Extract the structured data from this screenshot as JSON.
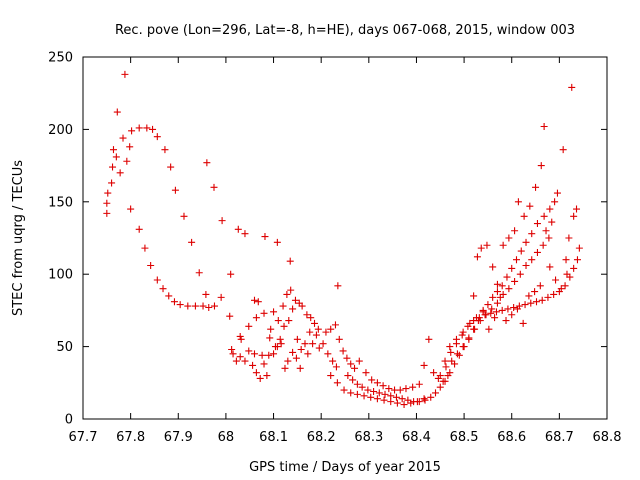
{
  "chart_data": {
    "type": "scatter",
    "title": "Rec. pove (Lon=296, Lat=-8, h=HE), days 067-068, 2015, window 003",
    "xlabel": "GPS time / Days of year 2015",
    "ylabel": "STEC from uqrg / TECUs",
    "xlim": [
      67.7,
      68.8
    ],
    "ylim": [
      0,
      250
    ],
    "x_ticks": [
      "67.7",
      "67.8",
      "67.9",
      "68",
      "68.1",
      "68.2",
      "68.3",
      "68.4",
      "68.5",
      "68.6",
      "68.7",
      "68.8"
    ],
    "y_ticks": [
      "0",
      "50",
      "100",
      "150",
      "200",
      "250"
    ],
    "grid": false,
    "marker": "+",
    "color": "#dd0000",
    "series": [
      {
        "points": [
          [
            67.75,
            142
          ],
          [
            67.75,
            149
          ],
          [
            67.752,
            156
          ],
          [
            67.76,
            163
          ],
          [
            67.762,
            174
          ],
          [
            67.764,
            186
          ],
          [
            67.77,
            181
          ],
          [
            67.772,
            212
          ],
          [
            67.778,
            170
          ],
          [
            67.784,
            194
          ],
          [
            67.788,
            238
          ],
          [
            67.792,
            178
          ],
          [
            67.798,
            188
          ],
          [
            67.802,
            199
          ],
          [
            67.818,
            201
          ],
          [
            67.834,
            201
          ],
          [
            67.846,
            200
          ],
          [
            67.856,
            195
          ],
          [
            67.872,
            186
          ],
          [
            67.884,
            174
          ],
          [
            67.894,
            158
          ],
          [
            67.912,
            140
          ],
          [
            67.928,
            122
          ],
          [
            67.96,
            177
          ],
          [
            67.975,
            160
          ],
          [
            67.992,
            137
          ],
          [
            67.8,
            145
          ],
          [
            67.818,
            131
          ],
          [
            67.83,
            118
          ],
          [
            67.842,
            106
          ],
          [
            67.856,
            96
          ],
          [
            67.868,
            90
          ],
          [
            67.88,
            85
          ],
          [
            67.892,
            81
          ],
          [
            67.904,
            79
          ],
          [
            67.92,
            78
          ],
          [
            67.936,
            78
          ],
          [
            67.952,
            78
          ],
          [
            67.964,
            77
          ],
          [
            67.976,
            78
          ],
          [
            67.944,
            101
          ],
          [
            67.958,
            86
          ],
          [
            67.99,
            84
          ],
          [
            68.01,
            100
          ],
          [
            68.026,
            131
          ],
          [
            68.04,
            128
          ],
          [
            68.06,
            82
          ],
          [
            68.068,
            81
          ],
          [
            68.082,
            126
          ],
          [
            68.108,
            122
          ],
          [
            68.135,
            109
          ],
          [
            68.235,
            92
          ],
          [
            68.008,
            71
          ],
          [
            68.012,
            48
          ],
          [
            68.015,
            45
          ],
          [
            68.022,
            40
          ],
          [
            68.03,
            43
          ],
          [
            68.032,
            55
          ],
          [
            68.04,
            40
          ],
          [
            68.048,
            47
          ],
          [
            68.056,
            37
          ],
          [
            68.06,
            45
          ],
          [
            68.064,
            32
          ],
          [
            68.072,
            28
          ],
          [
            68.076,
            44
          ],
          [
            68.08,
            38
          ],
          [
            68.086,
            30
          ],
          [
            68.09,
            44
          ],
          [
            68.094,
            62
          ],
          [
            68.1,
            74
          ],
          [
            68.11,
            68
          ],
          [
            68.12,
            78
          ],
          [
            68.124,
            35
          ],
          [
            68.128,
            86
          ],
          [
            68.136,
            89
          ],
          [
            68.146,
            82
          ],
          [
            68.154,
            80
          ],
          [
            68.16,
            78
          ],
          [
            68.17,
            72
          ],
          [
            68.178,
            70
          ],
          [
            68.186,
            66
          ],
          [
            68.194,
            62
          ],
          [
            68.03,
            57
          ],
          [
            68.048,
            64
          ],
          [
            68.064,
            70
          ],
          [
            68.08,
            73
          ],
          [
            68.092,
            56
          ],
          [
            68.104,
            50
          ],
          [
            68.114,
            55
          ],
          [
            68.122,
            64
          ],
          [
            68.132,
            68
          ],
          [
            68.14,
            76
          ],
          [
            68.15,
            55
          ],
          [
            68.158,
            48
          ],
          [
            68.166,
            52
          ],
          [
            68.176,
            60
          ],
          [
            68.19,
            58
          ],
          [
            68.204,
            52
          ],
          [
            68.214,
            45
          ],
          [
            68.224,
            40
          ],
          [
            68.232,
            36
          ],
          [
            68.1,
            45
          ],
          [
            68.108,
            50
          ],
          [
            68.116,
            52
          ],
          [
            68.13,
            40
          ],
          [
            68.14,
            46
          ],
          [
            68.148,
            42
          ],
          [
            68.156,
            35
          ],
          [
            68.172,
            45
          ],
          [
            68.182,
            52
          ],
          [
            68.196,
            49
          ],
          [
            68.21,
            60
          ],
          [
            68.22,
            62
          ],
          [
            68.23,
            65
          ],
          [
            68.238,
            55
          ],
          [
            68.246,
            47
          ],
          [
            68.254,
            42
          ],
          [
            68.262,
            38
          ],
          [
            68.27,
            35
          ],
          [
            68.22,
            30
          ],
          [
            68.234,
            25
          ],
          [
            68.248,
            20
          ],
          [
            68.262,
            18
          ],
          [
            68.276,
            17
          ],
          [
            68.29,
            16
          ],
          [
            68.304,
            15
          ],
          [
            68.318,
            14
          ],
          [
            68.332,
            13
          ],
          [
            68.346,
            12
          ],
          [
            68.36,
            11
          ],
          [
            68.374,
            10
          ],
          [
            68.388,
            11
          ],
          [
            68.402,
            12
          ],
          [
            68.416,
            14
          ],
          [
            68.256,
            30
          ],
          [
            68.266,
            27
          ],
          [
            68.276,
            24
          ],
          [
            68.286,
            22
          ],
          [
            68.298,
            20
          ],
          [
            68.31,
            19
          ],
          [
            68.322,
            18
          ],
          [
            68.334,
            17
          ],
          [
            68.346,
            16
          ],
          [
            68.358,
            15
          ],
          [
            68.37,
            14
          ],
          [
            68.382,
            13
          ],
          [
            68.394,
            12
          ],
          [
            68.406,
            12
          ],
          [
            68.418,
            13
          ],
          [
            68.43,
            15
          ],
          [
            68.28,
            40
          ],
          [
            68.294,
            32
          ],
          [
            68.306,
            27
          ],
          [
            68.318,
            25
          ],
          [
            68.33,
            23
          ],
          [
            68.342,
            21
          ],
          [
            68.354,
            20
          ],
          [
            68.366,
            20
          ],
          [
            68.378,
            21
          ],
          [
            68.392,
            22
          ],
          [
            68.406,
            24
          ],
          [
            68.416,
            37
          ],
          [
            68.426,
            55
          ],
          [
            68.436,
            32
          ],
          [
            68.446,
            28
          ],
          [
            68.456,
            26
          ],
          [
            68.466,
            30
          ],
          [
            68.44,
            18
          ],
          [
            68.45,
            22
          ],
          [
            68.46,
            26
          ],
          [
            68.47,
            32
          ],
          [
            68.48,
            38
          ],
          [
            68.49,
            44
          ],
          [
            68.5,
            50
          ],
          [
            68.51,
            56
          ],
          [
            68.52,
            62
          ],
          [
            68.53,
            68
          ],
          [
            68.54,
            74
          ],
          [
            68.55,
            79
          ],
          [
            68.56,
            84
          ],
          [
            68.57,
            88
          ],
          [
            68.58,
            92
          ],
          [
            68.59,
            98
          ],
          [
            68.6,
            104
          ],
          [
            68.61,
            110
          ],
          [
            68.62,
            116
          ],
          [
            68.63,
            122
          ],
          [
            68.642,
            128
          ],
          [
            68.654,
            135
          ],
          [
            68.668,
            140
          ],
          [
            68.68,
            145
          ],
          [
            68.69,
            150
          ],
          [
            68.45,
            30
          ],
          [
            68.462,
            36
          ],
          [
            68.474,
            40
          ],
          [
            68.486,
            45
          ],
          [
            68.498,
            50
          ],
          [
            68.51,
            55
          ],
          [
            68.522,
            62
          ],
          [
            68.534,
            68
          ],
          [
            68.546,
            72
          ],
          [
            68.558,
            76
          ],
          [
            68.57,
            80
          ],
          [
            68.582,
            86
          ],
          [
            68.594,
            90
          ],
          [
            68.606,
            95
          ],
          [
            68.618,
            100
          ],
          [
            68.63,
            106
          ],
          [
            68.642,
            110
          ],
          [
            68.654,
            115
          ],
          [
            68.666,
            120
          ],
          [
            68.678,
            125
          ],
          [
            68.46,
            40
          ],
          [
            68.472,
            46
          ],
          [
            68.484,
            52
          ],
          [
            68.496,
            58
          ],
          [
            68.508,
            64
          ],
          [
            68.52,
            68
          ],
          [
            68.532,
            70
          ],
          [
            68.544,
            72
          ],
          [
            68.556,
            73
          ],
          [
            68.568,
            74
          ],
          [
            68.58,
            75
          ],
          [
            68.592,
            76
          ],
          [
            68.604,
            77
          ],
          [
            68.616,
            78
          ],
          [
            68.628,
            79
          ],
          [
            68.64,
            80
          ],
          [
            68.652,
            81
          ],
          [
            68.664,
            82
          ],
          [
            68.676,
            84
          ],
          [
            68.688,
            86
          ],
          [
            68.7,
            88
          ],
          [
            68.712,
            92
          ],
          [
            68.722,
            98
          ],
          [
            68.73,
            104
          ],
          [
            68.738,
            110
          ],
          [
            68.742,
            118
          ],
          [
            68.52,
            85
          ],
          [
            68.528,
            112
          ],
          [
            68.536,
            118
          ],
          [
            68.548,
            120
          ],
          [
            68.56,
            105
          ],
          [
            68.57,
            93
          ],
          [
            68.582,
            120
          ],
          [
            68.594,
            125
          ],
          [
            68.606,
            130
          ],
          [
            68.614,
            150
          ],
          [
            68.626,
            140
          ],
          [
            68.638,
            147
          ],
          [
            68.65,
            160
          ],
          [
            68.662,
            175
          ],
          [
            68.672,
            130
          ],
          [
            68.684,
            136
          ],
          [
            68.696,
            156
          ],
          [
            68.708,
            186
          ],
          [
            68.714,
            110
          ],
          [
            68.72,
            125
          ],
          [
            68.726,
            229
          ],
          [
            68.73,
            140
          ],
          [
            68.736,
            145
          ],
          [
            68.47,
            50
          ],
          [
            68.484,
            55
          ],
          [
            68.498,
            60
          ],
          [
            68.512,
            66
          ],
          [
            68.526,
            70
          ],
          [
            68.54,
            75
          ],
          [
            68.552,
            62
          ],
          [
            68.564,
            70
          ],
          [
            68.576,
            84
          ],
          [
            68.588,
            68
          ],
          [
            68.6,
            72
          ],
          [
            68.612,
            76
          ],
          [
            68.624,
            66
          ],
          [
            68.636,
            85
          ],
          [
            68.648,
            88
          ],
          [
            68.66,
            92
          ],
          [
            68.668,
            202
          ],
          [
            68.68,
            105
          ],
          [
            68.692,
            96
          ],
          [
            68.704,
            90
          ],
          [
            68.716,
            100
          ]
        ]
      }
    ]
  }
}
